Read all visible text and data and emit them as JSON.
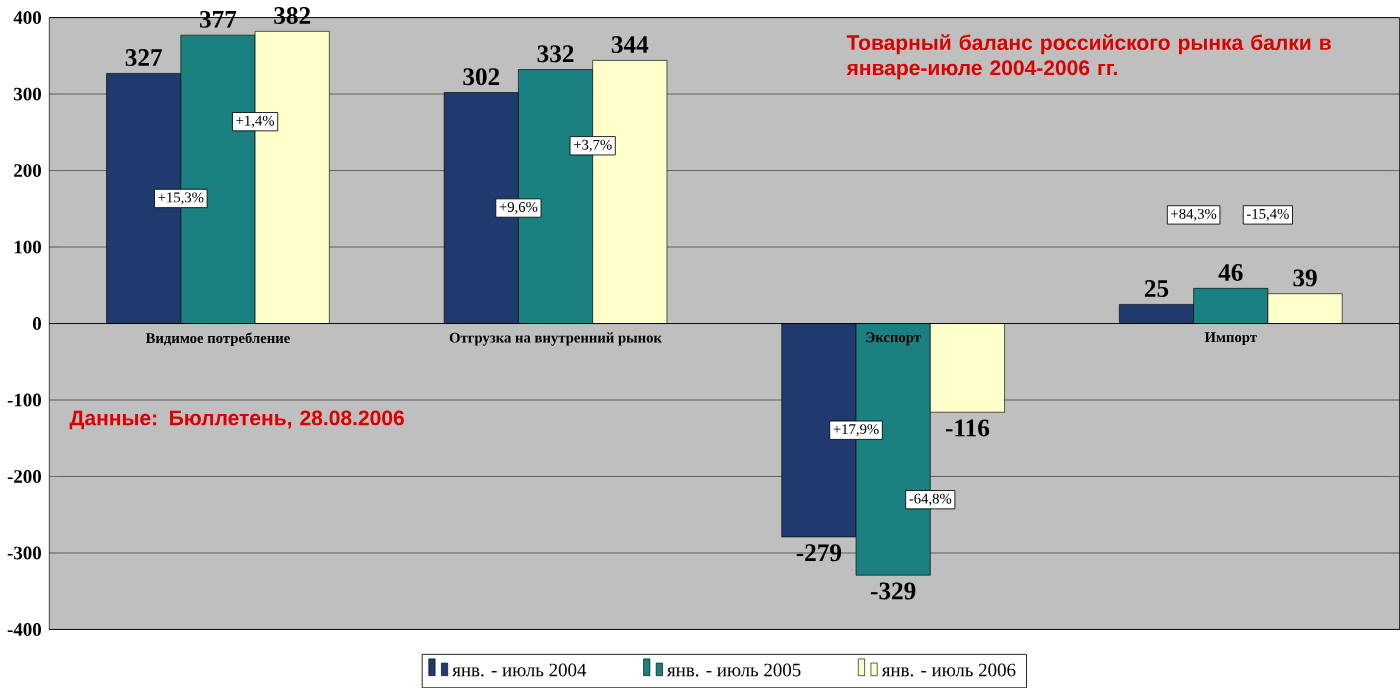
{
  "chart_data": {
    "type": "bar",
    "title": "Товарный баланс российского рынка балки в январе-июле 2004-2006 гг.",
    "categories": [
      "Видимое потребление",
      "Отгрузка на внутренний рынок",
      "Экспорт",
      "Импорт"
    ],
    "series": [
      {
        "name": "янв. - июль 2004",
        "color": "#1f3a6e",
        "values": [
          327,
          302,
          -279,
          25
        ]
      },
      {
        "name": "янв. - июль 2005",
        "color": "#1a8080",
        "values": [
          377,
          332,
          -329,
          46
        ]
      },
      {
        "name": "янв. - июль 2006",
        "color": "#ffffcc",
        "values": [
          382,
          344,
          -116,
          39
        ]
      }
    ],
    "ylim": [
      -400,
      400
    ],
    "yticks": [
      -400,
      -300,
      -200,
      -100,
      0,
      100,
      200,
      300,
      400
    ],
    "grid": true,
    "legend": "bottom",
    "data_labels": true,
    "annotations": [
      "+15,3%",
      "+1,4%",
      "+9,6%",
      "+3,7%",
      "+17,9%",
      "-64,8%",
      "+84,3%",
      "-15,4%",
      "Данные: Бюллетень, 28.08.2006"
    ]
  }
}
